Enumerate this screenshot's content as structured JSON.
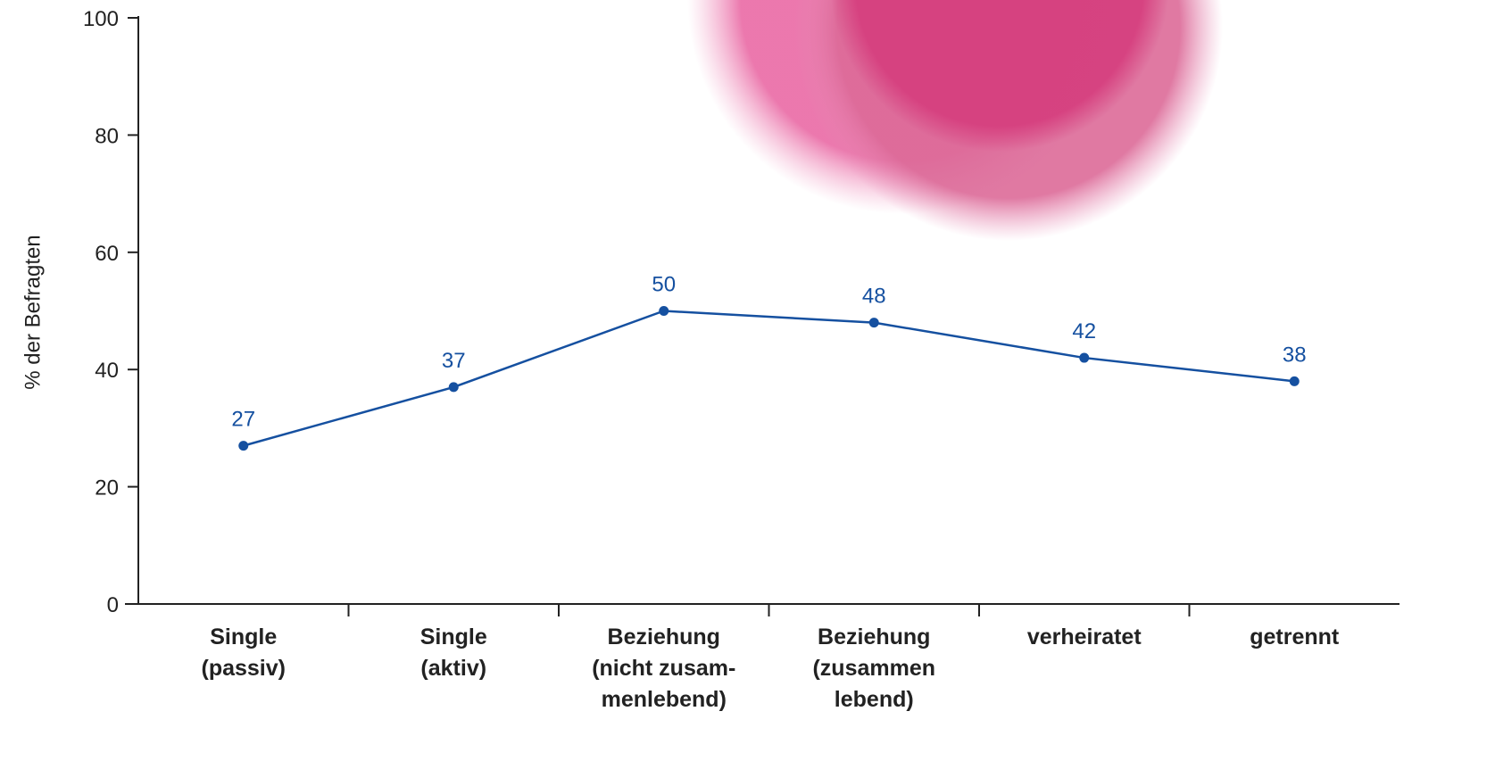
{
  "chart_data": {
    "type": "line",
    "y_label": "% der Befragten",
    "categories": [
      "Single\n(passiv)",
      "Single\n(aktiv)",
      "Beziehung\n(nicht zusam-\nmenlebend)",
      "Beziehung\n(zusammen\nlebend)",
      "verheiratet",
      "getrennt"
    ],
    "values": [
      27,
      37,
      50,
      48,
      42,
      38
    ],
    "color": "#1550a0",
    "ylim": [
      0,
      100
    ],
    "yticks": [
      0,
      20,
      40,
      60,
      80,
      100
    ],
    "grid": false
  }
}
